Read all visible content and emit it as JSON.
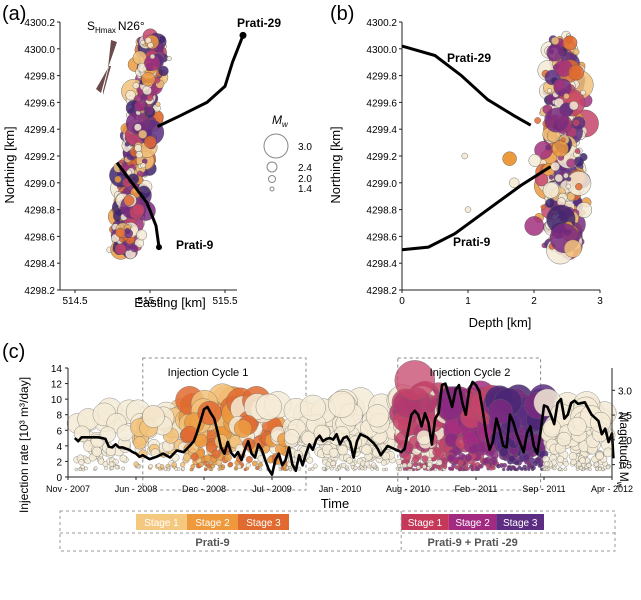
{
  "panels": {
    "a": {
      "label": "(a)",
      "xlabel": "Easting [km]",
      "ylabel": "Northing [km]",
      "xlim": [
        514.4,
        515.7
      ],
      "ylim": [
        4298.2,
        4300.2
      ],
      "xticks": [
        "514.5",
        "515.0",
        "515.5"
      ],
      "yticks": [
        "4298.2",
        "4298.4",
        "4298.6",
        "4298.8",
        "4299.0",
        "4299.2",
        "4299.4",
        "4299.6",
        "4299.8",
        "4300.0",
        "4300.2"
      ],
      "stress_label_main": "S",
      "stress_label_sub": "Hmax",
      "stress_label_angle": "N26°",
      "legend_title": "M",
      "legend_title_sub": "w",
      "legend_values": [
        "3.0",
        "2.4",
        "2.0",
        "1.4"
      ],
      "well_labels": [
        "Prati-29",
        "Prati-9"
      ]
    },
    "b": {
      "label": "(b)",
      "xlabel": "Depth [km]",
      "ylabel": "Northing [km]",
      "xlim": [
        0,
        3
      ],
      "ylim": [
        4298.2,
        4300.2
      ],
      "xticks": [
        "0",
        "1",
        "2",
        "3"
      ],
      "yticks": [
        "4298.2",
        "4298.4",
        "4298.6",
        "4298.8",
        "4299.0",
        "4299.2",
        "4299.4",
        "4299.6",
        "4299.8",
        "4300.0",
        "4300.2"
      ],
      "well_labels": [
        "Prati-29",
        "Prati-9"
      ]
    },
    "c": {
      "label": "(c)",
      "xlabel": "Time",
      "ylabel_left": "Injection rate [10³ m³/day]",
      "ylabel_right_main": "Magnitude M",
      "ylabel_right_sub": "w",
      "yticks_left": [
        "0",
        "2",
        "4",
        "6",
        "8",
        "10",
        "12",
        "14"
      ],
      "yticks_right": [
        "1.5",
        "2.0",
        "2.5",
        "3.0"
      ],
      "xticks": [
        "Nov - 2007",
        "Jun - 2008",
        "Dec - 2008",
        "Jul - 2009",
        "Jan - 2010",
        "Aug - 2010",
        "Feb - 2011",
        "Sep - 2011",
        "Apr - 2012"
      ],
      "cycle_labels": [
        "Injection Cycle 1",
        "Injection Cycle 2"
      ],
      "stages": [
        {
          "label": "Stage 1",
          "color": "#f5c880"
        },
        {
          "label": "Stage 2",
          "color": "#ee9a3c"
        },
        {
          "label": "Stage 3",
          "color": "#e06a30"
        },
        {
          "label": "Stage 1",
          "color": "#c53858"
        },
        {
          "label": "Stage 2",
          "color": "#a22a80"
        },
        {
          "label": "Stage 3",
          "color": "#5c2d82"
        }
      ],
      "well_groups": [
        "Prati-9",
        "Prati-9 + Prati -29"
      ]
    }
  },
  "chart_data": [
    {
      "type": "scatter",
      "panel": "a",
      "xlabel": "Easting [km]",
      "ylabel": "Northing [km]",
      "xlim": [
        514.4,
        515.7
      ],
      "ylim": [
        4298.2,
        4300.2
      ],
      "wells": [
        {
          "name": "Prati-29",
          "points": [
            [
              515.62,
              4300.1
            ],
            [
              515.55,
              4299.9
            ],
            [
              515.5,
              4299.72
            ],
            [
              515.38,
              4299.6
            ],
            [
              515.2,
              4299.5
            ],
            [
              515.05,
              4299.42
            ]
          ]
        },
        {
          "name": "Prati-9",
          "points": [
            [
              514.78,
              4299.15
            ],
            [
              514.88,
              4299.0
            ],
            [
              514.98,
              4298.85
            ],
            [
              515.04,
              4298.68
            ],
            [
              515.06,
              4298.52
            ]
          ]
        }
      ],
      "stress_azimuth_deg": 26,
      "magnitude_legend": [
        3.0,
        2.4,
        2.0,
        1.4
      ]
    },
    {
      "type": "scatter",
      "panel": "b",
      "xlabel": "Depth [km]",
      "ylabel": "Northing [km]",
      "xlim": [
        0,
        3
      ],
      "ylim": [
        4298.2,
        4300.2
      ],
      "wells": [
        {
          "name": "Prati-29",
          "points": [
            [
              0,
              4300.02
            ],
            [
              0.5,
              4299.95
            ],
            [
              0.9,
              4299.8
            ],
            [
              1.3,
              4299.62
            ],
            [
              1.7,
              4299.5
            ],
            [
              1.95,
              4299.43
            ]
          ]
        },
        {
          "name": "Prati-9",
          "points": [
            [
              0,
              4298.5
            ],
            [
              0.4,
              4298.52
            ],
            [
              0.8,
              4298.62
            ],
            [
              1.3,
              4298.8
            ],
            [
              1.8,
              4298.98
            ],
            [
              2.25,
              4299.12
            ]
          ]
        }
      ]
    },
    {
      "type": "line",
      "panel": "c",
      "xlabel": "Time",
      "ylabel": "Injection rate [10³ m³/day]",
      "ylim": [
        0,
        14
      ],
      "y2lim": [
        1.25,
        3.45
      ],
      "x_ticks": [
        "Nov - 2007",
        "Jun - 2008",
        "Dec - 2008",
        "Jul - 2009",
        "Jan - 2010",
        "Aug - 2010",
        "Feb - 2011",
        "Sep - 2011",
        "Apr - 2012"
      ],
      "x_index_range": [
        0,
        8
      ],
      "series": [
        {
          "values": [
            [
              0.1,
              5
            ],
            [
              0.15,
              4.6
            ],
            [
              0.2,
              5.1
            ],
            [
              0.45,
              5.1
            ],
            [
              0.55,
              4.9
            ],
            [
              0.6,
              3.9
            ],
            [
              0.65,
              3.8
            ],
            [
              0.7,
              4.2
            ],
            [
              0.75,
              3.8
            ],
            [
              0.8,
              3.8
            ],
            [
              0.9,
              3.5
            ],
            [
              0.95,
              3.2
            ],
            [
              1.0,
              3.0
            ],
            [
              1.05,
              2.6
            ],
            [
              1.1,
              2.8
            ],
            [
              1.2,
              2.3
            ],
            [
              1.3,
              2.6
            ],
            [
              1.4,
              3.0
            ],
            [
              1.5,
              2.5
            ],
            [
              1.6,
              3.4
            ],
            [
              1.7,
              3.2
            ],
            [
              1.8,
              4.1
            ],
            [
              1.85,
              4.6
            ],
            [
              1.9,
              5.8
            ],
            [
              1.95,
              7.2
            ],
            [
              2.0,
              8.7
            ],
            [
              2.05,
              9.0
            ],
            [
              2.1,
              8.2
            ],
            [
              2.15,
              7.5
            ],
            [
              2.2,
              5.8
            ],
            [
              2.25,
              3.8
            ],
            [
              2.3,
              3.0
            ],
            [
              2.35,
              4.5
            ],
            [
              2.4,
              3.1
            ],
            [
              2.45,
              2.6
            ],
            [
              2.5,
              3.2
            ],
            [
              2.55,
              2.2
            ],
            [
              2.6,
              3.5
            ],
            [
              2.65,
              4.6
            ],
            [
              2.7,
              3.0
            ],
            [
              2.75,
              2.5
            ],
            [
              2.8,
              4.2
            ],
            [
              2.85,
              3.5
            ],
            [
              2.9,
              2.2
            ],
            [
              2.95,
              1.0
            ],
            [
              3.0,
              0.3
            ],
            [
              3.05,
              2.2
            ],
            [
              3.1,
              3.0
            ],
            [
              3.15,
              1.5
            ],
            [
              3.2,
              2.2
            ],
            [
              3.25,
              3.8
            ],
            [
              3.3,
              1.6
            ],
            [
              3.35,
              0.8
            ],
            [
              3.4,
              2.8
            ],
            [
              3.45,
              1.5
            ],
            [
              3.5,
              3.0
            ],
            [
              3.55,
              4.2
            ],
            [
              3.6,
              3.5
            ],
            [
              3.65,
              4.8
            ],
            [
              3.7,
              5.3
            ],
            [
              3.75,
              4.6
            ],
            [
              3.8,
              4.9
            ],
            [
              3.85,
              5.0
            ],
            [
              3.9,
              4.8
            ],
            [
              3.95,
              5.5
            ],
            [
              4.0,
              4.2
            ],
            [
              4.05,
              5.0
            ],
            [
              4.1,
              5.2
            ],
            [
              4.15,
              4.5
            ],
            [
              4.2,
              2.5
            ],
            [
              4.25,
              4.6
            ],
            [
              4.3,
              5.5
            ],
            [
              4.4,
              5.1
            ],
            [
              4.5,
              4.3
            ],
            [
              4.55,
              3.7
            ],
            [
              4.6,
              2.8
            ],
            [
              4.65,
              3.4
            ],
            [
              4.7,
              4.0
            ],
            [
              4.8,
              3.6
            ],
            [
              4.9,
              3.2
            ],
            [
              4.95,
              3.6
            ],
            [
              5.0,
              5.8
            ],
            [
              5.05,
              8.0
            ],
            [
              5.1,
              8.5
            ],
            [
              5.15,
              8.0
            ],
            [
              5.2,
              6.5
            ],
            [
              5.25,
              8.2
            ],
            [
              5.3,
              7.0
            ],
            [
              5.35,
              4.2
            ],
            [
              5.4,
              7.5
            ],
            [
              5.45,
              8.2
            ],
            [
              5.5,
              11.8
            ],
            [
              5.55,
              12.0
            ],
            [
              5.6,
              10.5
            ],
            [
              5.65,
              9.0
            ],
            [
              5.7,
              11.2
            ],
            [
              5.75,
              11.8
            ],
            [
              5.8,
              9.5
            ],
            [
              5.85,
              8.0
            ],
            [
              5.9,
              11.2
            ],
            [
              5.95,
              12.2
            ],
            [
              6.0,
              11.8
            ],
            [
              6.05,
              11.0
            ],
            [
              6.1,
              8.5
            ],
            [
              6.15,
              5.5
            ],
            [
              6.2,
              3.5
            ],
            [
              6.25,
              4.6
            ],
            [
              6.3,
              7.5
            ],
            [
              6.35,
              6.0
            ],
            [
              6.4,
              4.0
            ],
            [
              6.45,
              3.8
            ],
            [
              6.5,
              8.0
            ],
            [
              6.55,
              7.0
            ],
            [
              6.6,
              5.5
            ],
            [
              6.7,
              3.2
            ],
            [
              6.75,
              5.6
            ],
            [
              6.8,
              6.5
            ],
            [
              6.85,
              4.0
            ],
            [
              6.9,
              3.0
            ],
            [
              6.95,
              5.8
            ],
            [
              7.0,
              9.2
            ],
            [
              7.05,
              9.0
            ],
            [
              7.1,
              8.0
            ],
            [
              7.15,
              6.8
            ],
            [
              7.2,
              9.5
            ],
            [
              7.25,
              10.0
            ],
            [
              7.3,
              7.5
            ],
            [
              7.35,
              8.0
            ],
            [
              7.4,
              9.5
            ],
            [
              7.45,
              9.8
            ],
            [
              7.5,
              9.4
            ],
            [
              7.6,
              9.6
            ],
            [
              7.7,
              8.0
            ],
            [
              7.8,
              7.2
            ],
            [
              7.85,
              5.5
            ],
            [
              7.9,
              6.2
            ],
            [
              7.95,
              4.5
            ],
            [
              8.0,
              5.6
            ],
            [
              8.02,
              2.4
            ]
          ]
        }
      ],
      "cycles": [
        {
          "label": "Injection Cycle 1",
          "x_range": [
            1.1,
            3.5
          ]
        },
        {
          "label": "Injection Cycle 2",
          "x_range": [
            4.85,
            6.95
          ]
        }
      ],
      "stages": [
        {
          "label": "Stage 1",
          "x_range": [
            1.0,
            1.75
          ]
        },
        {
          "label": "Stage 2",
          "x_range": [
            1.75,
            2.5
          ]
        },
        {
          "label": "Stage 3",
          "x_range": [
            2.5,
            3.25
          ]
        },
        {
          "label": "Stage 1",
          "x_range": [
            4.9,
            5.6
          ]
        },
        {
          "label": "Stage 2",
          "x_range": [
            5.6,
            6.3
          ]
        },
        {
          "label": "Stage 3",
          "x_range": [
            6.3,
            7.0
          ]
        }
      ]
    }
  ]
}
